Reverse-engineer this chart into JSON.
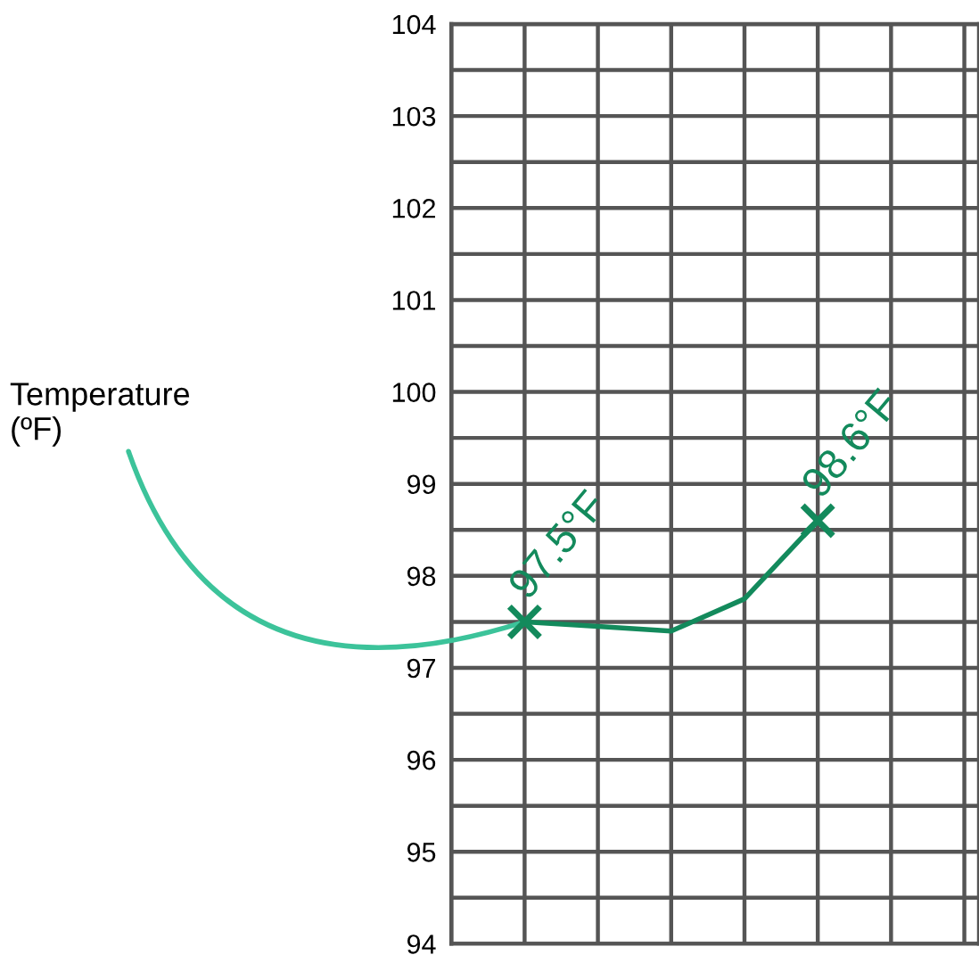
{
  "chart_data": {
    "type": "line",
    "annotations": [
      "Temperature\n(ºF)"
    ],
    "categories": [
      null,
      null,
      null,
      null,
      null,
      null,
      null,
      null
    ],
    "series": [
      {
        "color": "#138a5c",
        "values": [
          null,
          97.5,
          97.45,
          97.4,
          97.75,
          98.6,
          null,
          null
        ],
        "marker": "none"
      },
      {
        "type": "scatter",
        "color": "#138a5c",
        "marker": "cross",
        "values": [
          null,
          97.5,
          null,
          null,
          null,
          98.6,
          null,
          null
        ],
        "value_labels": [
          null,
          "97.5°F",
          null,
          null,
          null,
          "98.6°F",
          null,
          null
        ]
      }
    ],
    "ylim": [
      94,
      104
    ],
    "yticks": [
      94,
      {
        "value": 94.5,
        "label": null
      },
      95,
      {
        "value": 95.5,
        "label": null
      },
      96,
      {
        "value": 96.5,
        "label": null
      },
      97,
      {
        "value": 97.5,
        "label": null
      },
      98,
      {
        "value": 98.5,
        "label": null
      },
      99,
      {
        "value": 99.5,
        "label": null
      },
      100,
      {
        "value": 100.5,
        "label": null
      },
      101,
      {
        "value": 101.5,
        "label": null
      },
      102,
      {
        "value": 102.5,
        "label": null
      },
      103,
      {
        "value": 103.5,
        "label": null
      },
      104
    ],
    "grid": true,
    "line_style": "solid",
    "tick_labels": "y"
  }
}
